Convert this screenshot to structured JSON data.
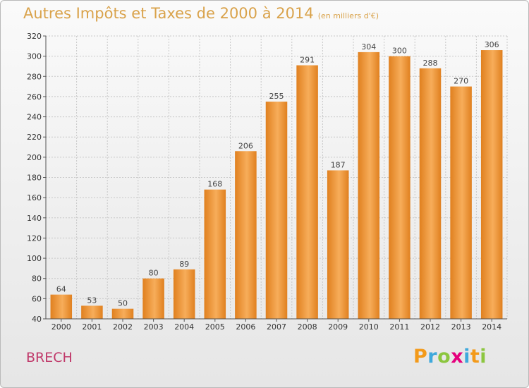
{
  "header": {
    "title": "Autres Impôts et Taxes de 2000 à 2014",
    "unit": "(en milliers d'€)"
  },
  "footer": {
    "commune": "BRECH",
    "logo": [
      "P",
      "r",
      "o",
      "x",
      "i",
      "t",
      "i"
    ],
    "logo_colors": [
      "#f39a1a",
      "#3fa9dc",
      "#8cc63f",
      "#e5007d",
      "#3fa9dc",
      "#f39a1a",
      "#8cc63f"
    ]
  },
  "colors": {
    "bar": "#f0922f",
    "bar_light": "#f7ad5a",
    "bar_dark": "#e0801f",
    "grid": "#c8c8c8",
    "axis": "#555555",
    "title": "#d9a24a",
    "commune": "#c0396a"
  },
  "chart_data": {
    "type": "bar",
    "categories": [
      "2000",
      "2001",
      "2002",
      "2003",
      "2004",
      "2005",
      "2006",
      "2007",
      "2008",
      "2009",
      "2010",
      "2011",
      "2012",
      "2013",
      "2014"
    ],
    "values": [
      64,
      53,
      50,
      80,
      89,
      168,
      206,
      255,
      291,
      187,
      304,
      300,
      288,
      270,
      306
    ],
    "ylim": [
      40,
      320
    ],
    "yticks": [
      "40",
      "60",
      "80",
      "100",
      "120",
      "140",
      "160",
      "180",
      "200",
      "220",
      "240",
      "260",
      "280",
      "300",
      "320"
    ],
    "grid": true
  }
}
